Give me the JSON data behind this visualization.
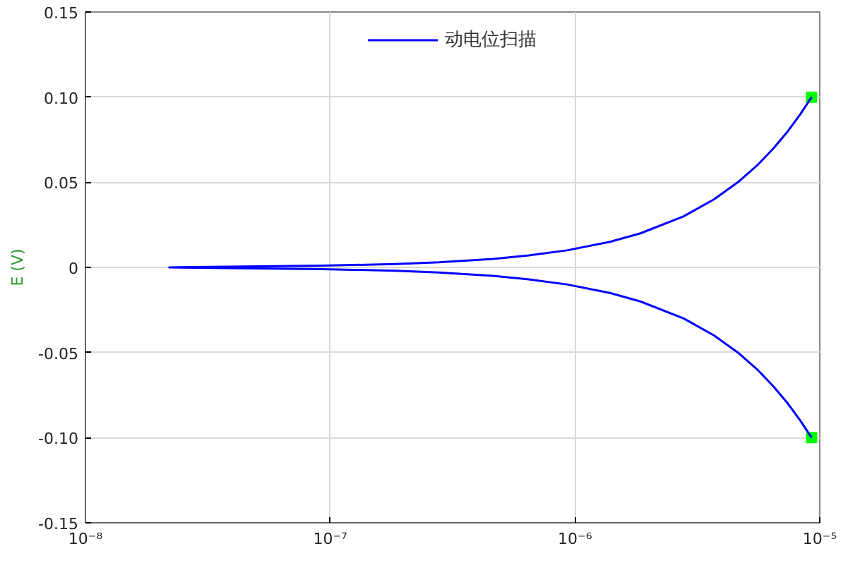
{
  "chart_data": {
    "type": "line",
    "ylabel": "E (V)",
    "log": "x",
    "xlim": [
      1e-08,
      1e-05
    ],
    "xticks": [
      {
        "value": 1e-08,
        "label": "10⁻⁸"
      },
      {
        "value": 1e-07,
        "label": "10⁻⁷"
      },
      {
        "value": 1e-06,
        "label": "10⁻⁶"
      },
      {
        "value": 1e-05,
        "label": "10⁻⁵"
      }
    ],
    "ylim": [
      -0.15,
      0.15
    ],
    "yticks": [
      {
        "value": -0.15,
        "label": "-0.15"
      },
      {
        "value": -0.1,
        "label": "-0.10"
      },
      {
        "value": -0.05,
        "label": "-0.05"
      },
      0,
      {
        "value": 0.05,
        "label": "0.05"
      },
      {
        "value": 0.1,
        "label": "0.10"
      },
      {
        "value": 0.15,
        "label": "0.15"
      }
    ],
    "grid": true,
    "legend": "top",
    "line_style": "solid",
    "series": [
      {
        "type": "scatter",
        "color": "#00ff00",
        "marker": "square",
        "x": [
          9.26e-06,
          9.26e-06
        ],
        "values": [
          -0.1,
          0.1
        ]
      },
      {
        "name": "动电位扫描",
        "color": "#0000ff",
        "marker": "none",
        "x": [
          9.26e-06,
          8.33e-06,
          7.41e-06,
          6.48e-06,
          5.56e-06,
          4.63e-06,
          3.7e-06,
          2.78e-06,
          1.85e-06,
          1.39e-06,
          9.26e-07,
          6.48e-07,
          4.63e-07,
          2.78e-07,
          1.85e-07,
          9.26e-08,
          2.2e-08,
          9.26e-08,
          1.85e-07,
          2.78e-07,
          4.63e-07,
          6.48e-07,
          9.26e-07,
          1.39e-06,
          1.85e-06,
          2.78e-06,
          3.7e-06,
          4.63e-06,
          5.56e-06,
          6.48e-06,
          7.41e-06,
          8.33e-06,
          9.26e-06
        ],
        "values": [
          -0.1,
          -0.09,
          -0.08,
          -0.07,
          -0.06,
          -0.05,
          -0.04,
          -0.03,
          -0.02,
          -0.015,
          -0.01,
          -0.007,
          -0.005,
          -0.003,
          -0.002,
          -0.001,
          0,
          0.001,
          0.002,
          0.003,
          0.005,
          0.007,
          0.01,
          0.015,
          0.02,
          0.03,
          0.04,
          0.05,
          0.06,
          0.07,
          0.08,
          0.09,
          0.1
        ]
      }
    ]
  }
}
